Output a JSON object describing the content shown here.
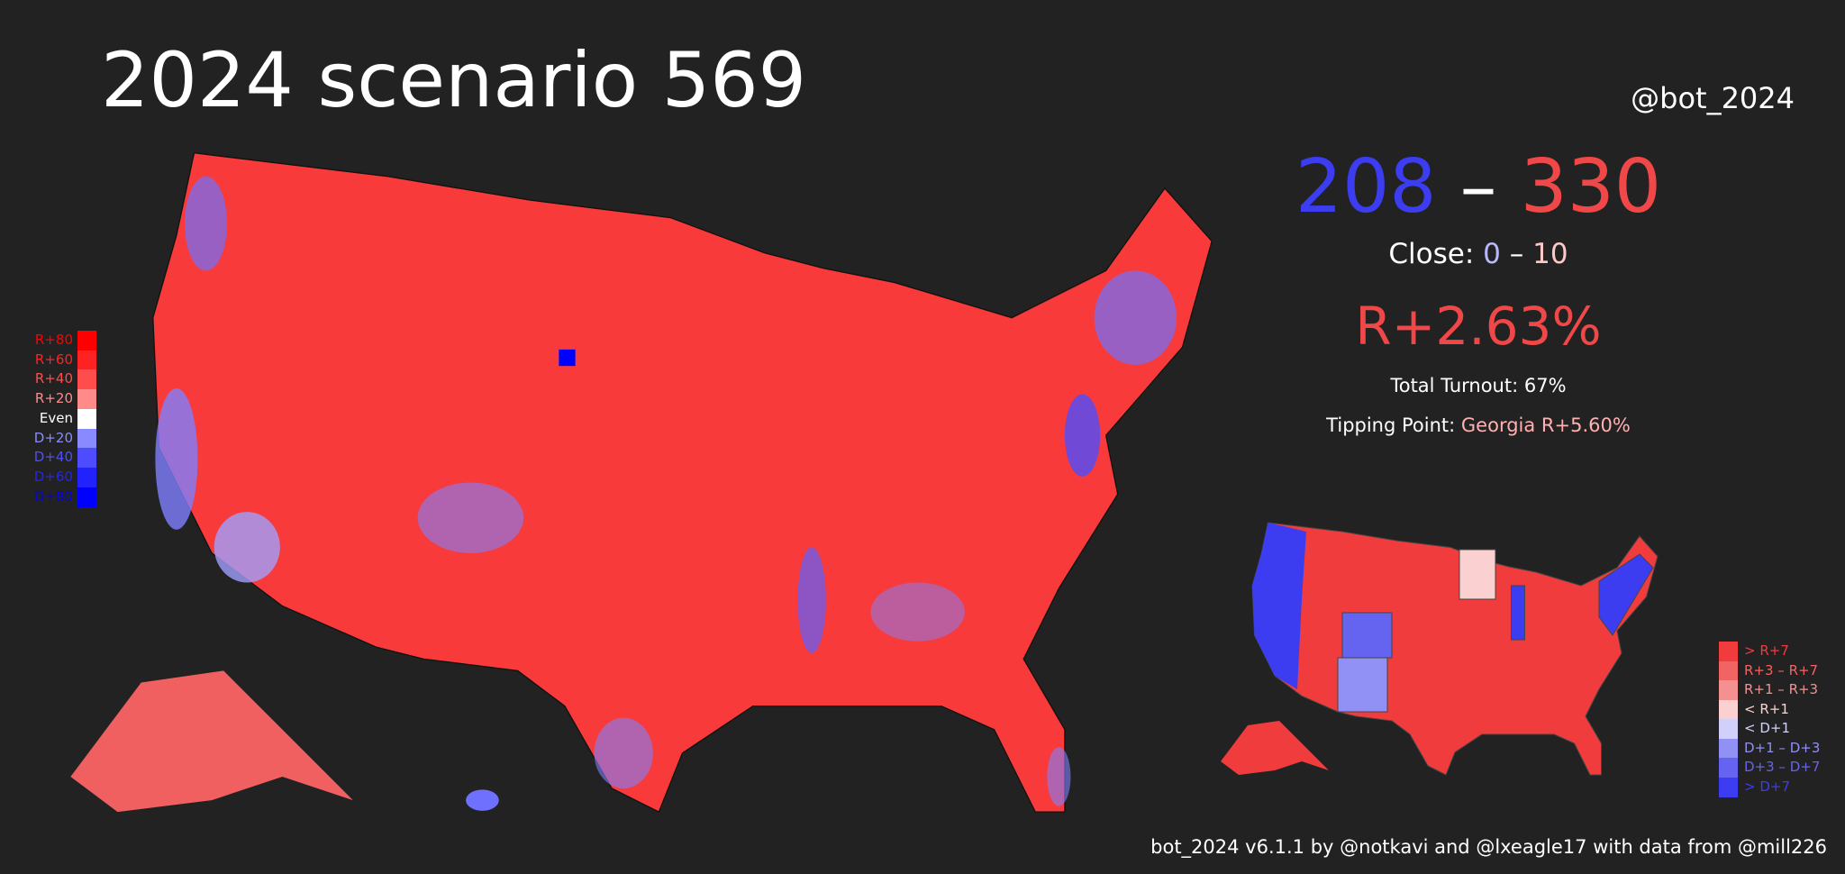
{
  "header": {
    "title": "2024 scenario 569",
    "handle": "@bot_2024"
  },
  "summary": {
    "dem_ev": 208,
    "separator": "–",
    "rep_ev": 330,
    "close_label": "Close:",
    "close_dem": "0",
    "close_separator": "–",
    "close_rep": "10",
    "popular_margin": "R+2.63%",
    "turnout": "Total Turnout: 67%",
    "tipping_label": "Tipping Point:",
    "tipping_value": "Georgia R+5.60%"
  },
  "county_legend": [
    {
      "label": "R+80",
      "color": "#ff0000"
    },
    {
      "label": "R+60",
      "color": "#ff2222"
    },
    {
      "label": "R+40",
      "color": "#ff4d4d"
    },
    {
      "label": "R+20",
      "color": "#ff8a8a"
    },
    {
      "label": "Even",
      "color": "#ffffff"
    },
    {
      "label": "D+20",
      "color": "#8a8aff"
    },
    {
      "label": "D+40",
      "color": "#4d4dff"
    },
    {
      "label": "D+60",
      "color": "#2222ff"
    },
    {
      "label": "D+80",
      "color": "#0000ff"
    }
  ],
  "state_legend": [
    {
      "label": "> R+7",
      "color": "#f03c3c"
    },
    {
      "label": "R+3 – R+7",
      "color": "#f06464"
    },
    {
      "label": "R+1 – R+3",
      "color": "#f59090"
    },
    {
      "label": "< R+1",
      "color": "#fbd0d0"
    },
    {
      "label": "< D+1",
      "color": "#d0d0fb"
    },
    {
      "label": "D+1 – D+3",
      "color": "#9090f5"
    },
    {
      "label": "D+3 – D+7",
      "color": "#6464f0"
    },
    {
      "label": "> D+7",
      "color": "#3c3cf0"
    }
  ],
  "footer": "bot_2024 v6.1.1 by @notkavi and @lxeagle17 with data from @mill226"
}
